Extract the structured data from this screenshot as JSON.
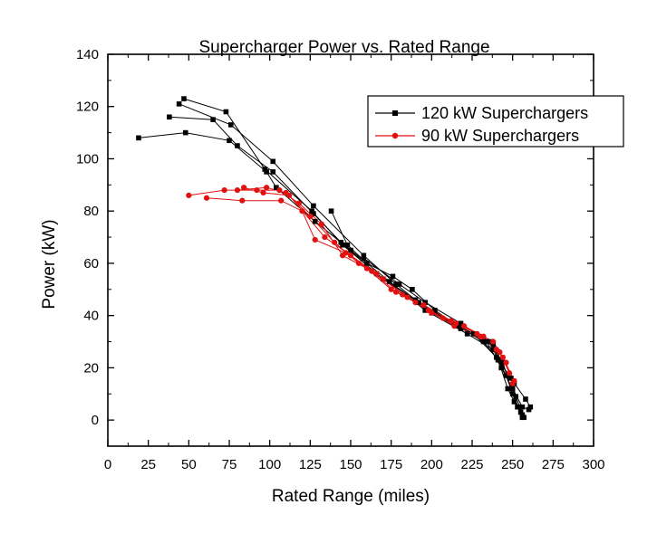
{
  "chart_data": {
    "type": "scatter",
    "title": "Supercharger Power vs. Rated Range",
    "xlabel": "Rated Range (miles)",
    "ylabel": "Power (kW)",
    "xlim": [
      0,
      300
    ],
    "ylim": [
      -10,
      140
    ],
    "x_ticks": [
      "0",
      "25",
      "50",
      "75",
      "100",
      "125",
      "150",
      "175",
      "200",
      "225",
      "250",
      "275",
      "300"
    ],
    "y_ticks": [
      "0",
      "20",
      "40",
      "60",
      "80",
      "100",
      "120",
      "140"
    ],
    "legend_position": "top-right",
    "colors": {
      "s120": "#000000",
      "s90": "#e31010"
    },
    "series": [
      {
        "name": "120 kW Superchargers",
        "marker": "square",
        "lines": [
          [
            [
              19,
              108
            ],
            [
              48,
              110
            ],
            [
              75,
              107
            ],
            [
              98,
              95
            ],
            [
              104,
              89
            ],
            [
              128,
              76
            ],
            [
              150,
              65
            ],
            [
              174,
              53
            ],
            [
              196,
              42
            ],
            [
              222,
              33
            ],
            [
              238,
              27
            ],
            [
              246,
              17
            ],
            [
              253,
              5
            ],
            [
              256,
              1
            ]
          ],
          [
            [
              38,
              116
            ],
            [
              65,
              115
            ],
            [
              80,
              105
            ],
            [
              102,
              95
            ],
            [
              127,
              79
            ],
            [
              144,
              68
            ],
            [
              166,
              56
            ],
            [
              190,
              46
            ],
            [
              214,
              37
            ],
            [
              238,
              29
            ],
            [
              247,
              12
            ],
            [
              251,
              7
            ],
            [
              256,
              2
            ]
          ],
          [
            [
              47,
              123
            ],
            [
              73,
              118
            ],
            [
              97,
              96
            ],
            [
              126,
              80
            ],
            [
              145,
              67
            ],
            [
              170,
              54
            ],
            [
              192,
              45
            ],
            [
              218,
              35
            ],
            [
              236,
              30
            ],
            [
              244,
              22
            ],
            [
              250,
              10
            ],
            [
              255,
              3
            ]
          ],
          [
            [
              44,
              121
            ],
            [
              76,
              113
            ],
            [
              102,
              99
            ],
            [
              127,
              82
            ],
            [
              158,
              63
            ],
            [
              178,
              52
            ],
            [
              200,
              41
            ],
            [
              226,
              33
            ],
            [
              240,
              24
            ],
            [
              249,
              16
            ],
            [
              252,
              9
            ],
            [
              257,
              1
            ]
          ],
          [
            [
              138,
              80
            ],
            [
              148,
              67
            ],
            [
              160,
              60
            ],
            [
              176,
              55
            ],
            [
              188,
              50
            ],
            [
              202,
              42
            ],
            [
              216,
              36
            ],
            [
              232,
              30
            ],
            [
              241,
              23
            ],
            [
              251,
              14
            ],
            [
              258,
              8
            ],
            [
              261,
              5
            ]
          ],
          [
            [
              158,
              62
            ],
            [
              180,
              52
            ],
            [
              196,
              45
            ],
            [
              218,
              37
            ],
            [
              234,
              30
            ],
            [
              243,
              20
            ],
            [
              250,
              12
            ],
            [
              256,
              5
            ],
            [
              260,
              4
            ]
          ]
        ]
      },
      {
        "name": "90 kW Superchargers",
        "marker": "circle",
        "lines": [
          [
            [
              50,
              86
            ],
            [
              72,
              88
            ],
            [
              92,
              88
            ],
            [
              106,
              88
            ],
            [
              118,
              83
            ],
            [
              132,
              75
            ],
            [
              145,
              63
            ],
            [
              160,
              58
            ],
            [
              175,
              50
            ],
            [
              190,
              45
            ],
            [
              207,
              39
            ],
            [
              220,
              36
            ],
            [
              238,
              30
            ],
            [
              246,
              22
            ],
            [
              250,
              14
            ]
          ],
          [
            [
              61,
              85
            ],
            [
              83,
              84
            ],
            [
              107,
              84
            ],
            [
              120,
              80
            ],
            [
              128,
              69
            ],
            [
              147,
              64
            ],
            [
              163,
              57
            ],
            [
              178,
              49
            ],
            [
              195,
              44
            ],
            [
              212,
              38
            ],
            [
              228,
              33
            ],
            [
              242,
              26
            ],
            [
              248,
              18
            ]
          ],
          [
            [
              80,
              88
            ],
            [
              98,
              89
            ],
            [
              110,
              87
            ],
            [
              125,
              78
            ],
            [
              140,
              68
            ],
            [
              155,
              60
            ],
            [
              170,
              54
            ],
            [
              185,
              47
            ],
            [
              200,
              41
            ],
            [
              215,
              37
            ],
            [
              232,
              32
            ],
            [
              244,
              24
            ],
            [
              251,
              15
            ]
          ],
          [
            [
              84,
              89
            ],
            [
              96,
              87
            ],
            [
              112,
              86
            ],
            [
              134,
              70
            ],
            [
              150,
              63
            ],
            [
              166,
              56
            ],
            [
              182,
              48
            ],
            [
              198,
              42
            ],
            [
              214,
              36
            ],
            [
              230,
              32
            ],
            [
              240,
              27
            ]
          ]
        ]
      }
    ]
  }
}
